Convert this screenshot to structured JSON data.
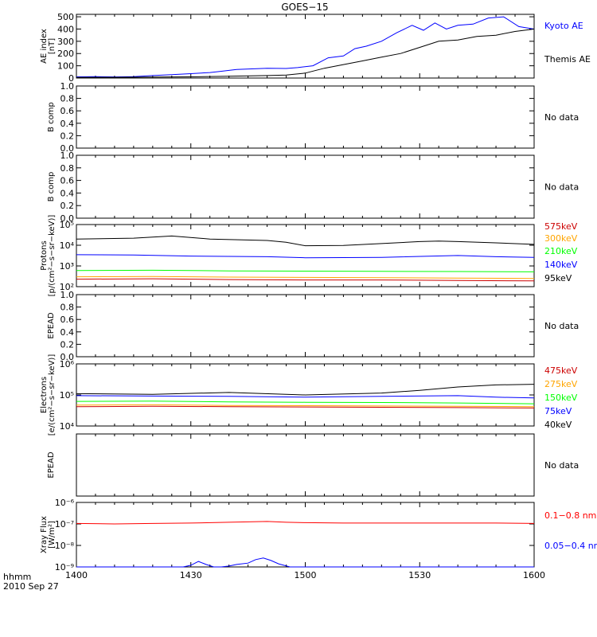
{
  "title": "GOES−15",
  "footer": {
    "time_label": "hhmm",
    "date_label": "2010 Sep 27"
  },
  "x_ticks": [
    {
      "v": 0,
      "label": "1400"
    },
    {
      "v": 30,
      "label": "1430"
    },
    {
      "v": 60,
      "label": "1500"
    },
    {
      "v": 90,
      "label": "1530"
    },
    {
      "v": 120,
      "label": "1600"
    }
  ],
  "colors": {
    "black": "#000000",
    "blue": "#0000ff",
    "red": "#ff0000",
    "orange": "#ffa500",
    "green": "#00ff00",
    "darkred": "#cc0000"
  },
  "chart_data": [
    {
      "id": "ae",
      "type": "line",
      "ylabel": [
        "AE index",
        "[nT]"
      ],
      "xlim": [
        0,
        120
      ],
      "ylim": [
        0,
        520
      ],
      "scale": "linear",
      "yticks": [
        {
          "v": 0,
          "label": "0"
        },
        {
          "v": 100,
          "label": "100"
        },
        {
          "v": 200,
          "label": "200"
        },
        {
          "v": 300,
          "label": "300"
        },
        {
          "v": 400,
          "label": "400"
        },
        {
          "v": 500,
          "label": "500"
        }
      ],
      "series": [
        {
          "name": "Kyoto AE",
          "color": "#0000ff",
          "x": [
            0,
            5,
            10,
            15,
            20,
            25,
            30,
            35,
            38,
            42,
            46,
            50,
            55,
            58,
            62,
            66,
            70,
            73,
            76,
            80,
            84,
            88,
            91,
            94,
            97,
            100,
            104,
            108,
            112,
            116,
            120
          ],
          "y": [
            10,
            12,
            9,
            12,
            20,
            28,
            36,
            45,
            55,
            70,
            75,
            80,
            78,
            85,
            100,
            165,
            180,
            240,
            260,
            300,
            370,
            430,
            390,
            450,
            400,
            430,
            440,
            490,
            500,
            420,
            400
          ]
        },
        {
          "name": "Themis AE",
          "color": "#000000",
          "x": [
            0,
            10,
            20,
            30,
            40,
            50,
            55,
            60,
            65,
            70,
            75,
            80,
            85,
            90,
            95,
            100,
            105,
            110,
            115,
            120
          ],
          "y": [
            5,
            6,
            8,
            10,
            15,
            20,
            25,
            40,
            80,
            110,
            140,
            170,
            200,
            250,
            300,
            310,
            340,
            350,
            380,
            400
          ]
        }
      ]
    },
    {
      "id": "b1",
      "type": "line",
      "ylabel": [
        "B comp"
      ],
      "xlim": [
        0,
        120
      ],
      "ylim": [
        0,
        1
      ],
      "scale": "linear",
      "yticks": [
        {
          "v": 0,
          "label": "0.0"
        },
        {
          "v": 0.2,
          "label": "0.2"
        },
        {
          "v": 0.4,
          "label": "0.4"
        },
        {
          "v": 0.6,
          "label": "0.6"
        },
        {
          "v": 0.8,
          "label": "0.8"
        },
        {
          "v": 1.0,
          "label": "1.0"
        }
      ],
      "series": [],
      "note": "No data"
    },
    {
      "id": "b2",
      "type": "line",
      "ylabel": [
        "B comp"
      ],
      "xlim": [
        0,
        120
      ],
      "ylim": [
        0,
        1
      ],
      "scale": "linear",
      "yticks": [
        {
          "v": 0,
          "label": "0.0"
        },
        {
          "v": 0.2,
          "label": "0.2"
        },
        {
          "v": 0.4,
          "label": "0.4"
        },
        {
          "v": 0.6,
          "label": "0.6"
        },
        {
          "v": 0.8,
          "label": "0.8"
        },
        {
          "v": 1.0,
          "label": "1.0"
        }
      ],
      "series": [],
      "note": "No data"
    },
    {
      "id": "protons",
      "type": "line",
      "ylabel": [
        "Protons",
        "[p/(cm²−s−sr−keV)]"
      ],
      "xlim": [
        0,
        120
      ],
      "ylim": [
        100,
        100000
      ],
      "scale": "log",
      "yticks": [
        {
          "v": 100,
          "label": "10²"
        },
        {
          "v": 1000,
          "label": "10³"
        },
        {
          "v": 10000,
          "label": "10⁴"
        },
        {
          "v": 100000,
          "label": "10⁵"
        }
      ],
      "series": [
        {
          "name": "575keV",
          "color": "#cc0000",
          "x": [
            0,
            20,
            40,
            60,
            80,
            100,
            120
          ],
          "y": [
            230,
            240,
            220,
            210,
            210,
            200,
            190
          ]
        },
        {
          "name": "300keV",
          "color": "#ffa500",
          "x": [
            0,
            20,
            40,
            60,
            80,
            100,
            120
          ],
          "y": [
            300,
            310,
            290,
            280,
            270,
            260,
            250
          ]
        },
        {
          "name": "210keV",
          "color": "#00ff00",
          "x": [
            0,
            20,
            40,
            60,
            80,
            100,
            120
          ],
          "y": [
            600,
            620,
            580,
            560,
            550,
            540,
            520
          ]
        },
        {
          "name": "140keV",
          "color": "#0000ff",
          "x": [
            0,
            15,
            30,
            50,
            60,
            80,
            100,
            110,
            120
          ],
          "y": [
            3500,
            3400,
            3000,
            2800,
            2500,
            2600,
            3200,
            2800,
            2600
          ]
        },
        {
          "name": "95keV",
          "color": "#000000",
          "x": [
            0,
            15,
            25,
            35,
            50,
            55,
            60,
            70,
            80,
            90,
            95,
            100,
            110,
            120
          ],
          "y": [
            20000,
            22000,
            28000,
            20000,
            17000,
            14000,
            9500,
            9800,
            12000,
            15000,
            16000,
            15000,
            13000,
            11000
          ]
        }
      ],
      "legend": [
        "575keV",
        "300keV",
        "210keV",
        "140keV",
        "95keV"
      ]
    },
    {
      "id": "epead1",
      "type": "line",
      "ylabel": [
        "EPEAD"
      ],
      "xlim": [
        0,
        120
      ],
      "ylim": [
        0,
        1
      ],
      "scale": "linear",
      "yticks": [
        {
          "v": 0,
          "label": "0.0"
        },
        {
          "v": 0.2,
          "label": "0.2"
        },
        {
          "v": 0.4,
          "label": "0.4"
        },
        {
          "v": 0.6,
          "label": "0.6"
        },
        {
          "v": 0.8,
          "label": "0.8"
        },
        {
          "v": 1.0,
          "label": "1.0"
        }
      ],
      "series": [],
      "note": "No data"
    },
    {
      "id": "electrons",
      "type": "line",
      "ylabel": [
        "Electrons",
        "[e/(cm²−s−sr−keV)]"
      ],
      "xlim": [
        0,
        120
      ],
      "ylim": [
        10000,
        1000000
      ],
      "scale": "log",
      "yticks": [
        {
          "v": 10000,
          "label": "10⁴"
        },
        {
          "v": 100000,
          "label": "10⁵"
        },
        {
          "v": 1000000,
          "label": "10⁶"
        }
      ],
      "series": [
        {
          "name": "475keV",
          "color": "#cc0000",
          "x": [
            0,
            20,
            40,
            60,
            80,
            100,
            120
          ],
          "y": [
            42000,
            43000,
            42000,
            41000,
            40000,
            39000,
            38000
          ]
        },
        {
          "name": "275keV",
          "color": "#ffa500",
          "x": [
            0,
            20,
            40,
            60,
            80,
            100,
            120
          ],
          "y": [
            47000,
            48000,
            46000,
            45000,
            44000,
            43000,
            42000
          ]
        },
        {
          "name": "150keV",
          "color": "#00ff00",
          "x": [
            0,
            20,
            40,
            60,
            80,
            100,
            120
          ],
          "y": [
            62000,
            63000,
            60000,
            58000,
            57000,
            55000,
            52000
          ]
        },
        {
          "name": "75keV",
          "color": "#0000ff",
          "x": [
            0,
            20,
            40,
            60,
            80,
            100,
            110,
            120
          ],
          "y": [
            95000,
            92000,
            90000,
            85000,
            90000,
            95000,
            85000,
            80000
          ]
        },
        {
          "name": "40keV",
          "color": "#000000",
          "x": [
            0,
            20,
            40,
            60,
            80,
            90,
            100,
            110,
            120
          ],
          "y": [
            110000,
            105000,
            120000,
            100000,
            115000,
            140000,
            180000,
            210000,
            220000
          ]
        }
      ],
      "legend": [
        "475keV",
        "275keV",
        "150keV",
        "75keV",
        "40keV"
      ]
    },
    {
      "id": "epead2",
      "type": "line",
      "ylabel": [
        "EPEAD"
      ],
      "xlim": [
        0,
        120
      ],
      "ylim": [
        0,
        1
      ],
      "scale": "linear",
      "yticks": [],
      "series": [],
      "note": "No data"
    },
    {
      "id": "xray",
      "type": "line",
      "ylabel": [
        "Xray Flux",
        "[W/m²]"
      ],
      "xlim": [
        0,
        120
      ],
      "ylim": [
        1e-09,
        1e-06
      ],
      "scale": "log",
      "yticks": [
        {
          "v": 1e-09,
          "label": "10⁻⁹"
        },
        {
          "v": 1e-08,
          "label": "10⁻⁸"
        },
        {
          "v": 1e-07,
          "label": "10⁻⁷"
        },
        {
          "v": 1e-06,
          "label": "10⁻⁶"
        }
      ],
      "series": [
        {
          "name": "0.1−0.8 nm",
          "color": "#ff0000",
          "x": [
            0,
            10,
            20,
            30,
            40,
            50,
            55,
            60,
            70,
            80,
            90,
            100,
            110,
            120
          ],
          "y": [
            1.05e-07,
            1e-07,
            1.05e-07,
            1.1e-07,
            1.2e-07,
            1.3e-07,
            1.2e-07,
            1.15e-07,
            1.1e-07,
            1.1e-07,
            1.1e-07,
            1.1e-07,
            1.1e-07,
            1.05e-07
          ]
        },
        {
          "name": "0.05−0.4 nm",
          "color": "#0000ff",
          "x": [
            0,
            28,
            30,
            32,
            34,
            36,
            38,
            40,
            42,
            45,
            47,
            49,
            51,
            53,
            56,
            60,
            80,
            100,
            120
          ],
          "y": [
            1e-09,
            1e-09,
            1.2e-09,
            1.8e-09,
            1.3e-09,
            1e-09,
            1e-09,
            1.1e-09,
            1.3e-09,
            1.5e-09,
            2.2e-09,
            2.6e-09,
            2e-09,
            1.4e-09,
            1e-09,
            1e-09,
            1e-09,
            1e-09,
            1e-09
          ]
        }
      ],
      "legend": [
        "0.1−0.8 nm",
        "0.05−0.4 nm"
      ]
    }
  ]
}
